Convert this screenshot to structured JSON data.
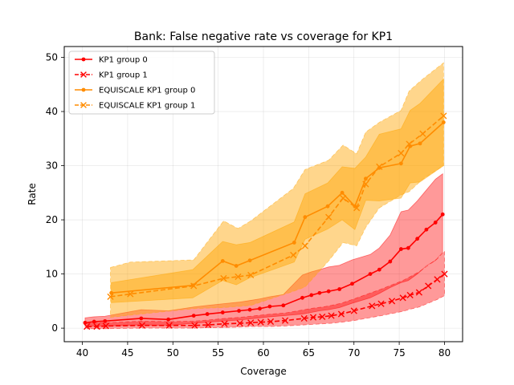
{
  "chart_data": {
    "type": "line",
    "title": "Bank: False negative rate vs coverage for KP1",
    "xlabel": "Coverage",
    "ylabel": "Rate",
    "xlim": [
      38.0,
      82.0
    ],
    "ylim": [
      -2.5,
      52.0
    ],
    "xticks": [
      40,
      45,
      50,
      55,
      60,
      65,
      70,
      75,
      80
    ],
    "yticks": [
      0,
      10,
      20,
      30,
      40,
      50
    ],
    "grid": true,
    "legend_position": "top-left",
    "colors": {
      "kp1": "#ff0000",
      "kp1_band": "#ff0000",
      "equiscale": "#ff8c00",
      "equiscale_band": "#ffa500"
    },
    "series": [
      {
        "name": "KP1 group 0",
        "color": "#ff0000",
        "linestyle": "solid",
        "marker": "dot",
        "x": [
          40.3,
          41.3,
          42.5,
          46.5,
          49.5,
          52.3,
          53.8,
          55.5,
          57.3,
          58.5,
          59.6,
          60.7,
          62.2,
          64.3,
          65.3,
          66.2,
          67.2,
          68.4,
          69.8,
          71.8,
          72.8,
          74.0,
          75.2,
          76.0,
          77.0,
          78.0,
          79.0,
          79.8
        ],
        "y": [
          1.0,
          1.2,
          1.3,
          1.8,
          1.6,
          2.3,
          2.6,
          2.9,
          3.2,
          3.4,
          3.6,
          4.0,
          4.2,
          5.6,
          6.1,
          6.5,
          6.8,
          7.2,
          8.2,
          10.0,
          10.8,
          12.3,
          14.6,
          14.8,
          16.5,
          18.2,
          19.5,
          21.0
        ],
        "band_upper": [
          1.9,
          2.1,
          2.2,
          3.4,
          3.2,
          3.9,
          4.2,
          4.5,
          4.8,
          5.1,
          5.4,
          5.8,
          6.2,
          9.8,
          10.4,
          10.8,
          11.3,
          11.6,
          12.6,
          13.6,
          14.8,
          17.2,
          21.5,
          21.8,
          23.5,
          25.5,
          27.5,
          28.5
        ],
        "band_lower": [
          0.3,
          0.4,
          0.4,
          0.6,
          0.5,
          0.9,
          1.1,
          1.3,
          1.5,
          1.7,
          1.9,
          2.1,
          2.3,
          2.6,
          2.9,
          3.2,
          3.4,
          3.8,
          4.6,
          5.6,
          6.4,
          7.5,
          8.4,
          8.8,
          10.0,
          11.5,
          12.5,
          14.0
        ]
      },
      {
        "name": "KP1 group 1",
        "color": "#ff0000",
        "linestyle": "dashed",
        "marker": "x",
        "x": [
          40.5,
          41.6,
          42.6,
          46.6,
          49.6,
          52.4,
          53.9,
          55.7,
          57.4,
          58.6,
          59.7,
          60.8,
          62.4,
          64.5,
          65.5,
          66.5,
          67.5,
          68.6,
          70.0,
          72.0,
          73.0,
          74.2,
          75.4,
          76.2,
          77.2,
          78.2,
          79.2,
          80.0
        ],
        "y": [
          0.3,
          0.3,
          0.4,
          0.5,
          0.5,
          0.5,
          0.6,
          0.8,
          0.9,
          1.0,
          1.1,
          1.2,
          1.4,
          1.8,
          2.0,
          2.1,
          2.3,
          2.6,
          3.2,
          4.1,
          4.5,
          5.0,
          5.6,
          6.1,
          6.6,
          7.8,
          9.0,
          10.0
        ],
        "band_upper": [
          0.9,
          1.0,
          1.0,
          1.3,
          1.2,
          1.3,
          1.5,
          1.8,
          2.0,
          2.2,
          2.4,
          2.6,
          2.8,
          3.4,
          3.7,
          3.9,
          4.2,
          4.6,
          5.4,
          6.6,
          7.2,
          8.0,
          8.8,
          9.5,
          10.4,
          11.6,
          12.8,
          14.2
        ],
        "band_lower": [
          -0.1,
          -0.1,
          -0.1,
          0.0,
          0.0,
          0.0,
          0.1,
          0.1,
          0.2,
          0.3,
          0.3,
          0.3,
          0.4,
          0.6,
          0.7,
          0.8,
          0.9,
          1.1,
          1.4,
          2.0,
          2.3,
          2.7,
          3.1,
          3.5,
          3.9,
          4.6,
          5.3,
          6.0
        ]
      },
      {
        "name": "EQUISCALE KP1 group 0",
        "color": "#ff8c00",
        "linestyle": "solid",
        "marker": "dot",
        "x": [
          43.2,
          52.2,
          55.5,
          57.0,
          58.5,
          63.4,
          64.6,
          67.1,
          68.7,
          70.1,
          71.3,
          72.8,
          75.2,
          76.2,
          77.3,
          79.9
        ],
        "y": [
          6.5,
          7.9,
          12.4,
          11.5,
          12.5,
          15.8,
          20.5,
          22.5,
          25.0,
          22.5,
          27.6,
          29.6,
          30.4,
          33.6,
          34.1,
          38.0
        ],
        "band_upper": [
          8.4,
          10.8,
          16.0,
          15.4,
          15.8,
          19.6,
          24.8,
          26.8,
          29.8,
          29.5,
          31.6,
          35.8,
          36.8,
          40.2,
          41.5,
          46.0
        ],
        "band_lower": [
          4.7,
          5.6,
          8.8,
          8.0,
          9.3,
          12.2,
          16.4,
          18.3,
          20.0,
          18.2,
          23.6,
          23.5,
          24.0,
          26.8,
          27.0,
          30.0
        ]
      },
      {
        "name": "EQUISCALE KP1 group 1",
        "color": "#ff8c00",
        "linestyle": "dashed",
        "marker": "x",
        "x": [
          43.1,
          45.3,
          52.3,
          55.6,
          57.2,
          58.6,
          63.3,
          64.6,
          67.2,
          68.8,
          70.3,
          71.3,
          72.8,
          75.2,
          76.1,
          77.6,
          79.9
        ],
        "y": [
          5.8,
          6.3,
          7.8,
          9.2,
          9.5,
          9.8,
          13.5,
          15.2,
          20.5,
          24.0,
          22.2,
          26.6,
          29.8,
          32.3,
          34.0,
          35.9,
          39.2
        ],
        "band_upper": [
          11.2,
          12.2,
          12.6,
          19.8,
          18.4,
          19.8,
          25.8,
          29.3,
          31.0,
          33.8,
          32.2,
          36.2,
          38.0,
          40.2,
          43.8,
          46.0,
          49.0
        ],
        "band_lower": [
          2.0,
          2.4,
          3.6,
          3.8,
          4.0,
          4.2,
          6.8,
          7.6,
          12.4,
          15.8,
          15.2,
          18.6,
          22.2,
          24.6,
          25.2,
          27.5,
          30.0
        ]
      }
    ]
  }
}
